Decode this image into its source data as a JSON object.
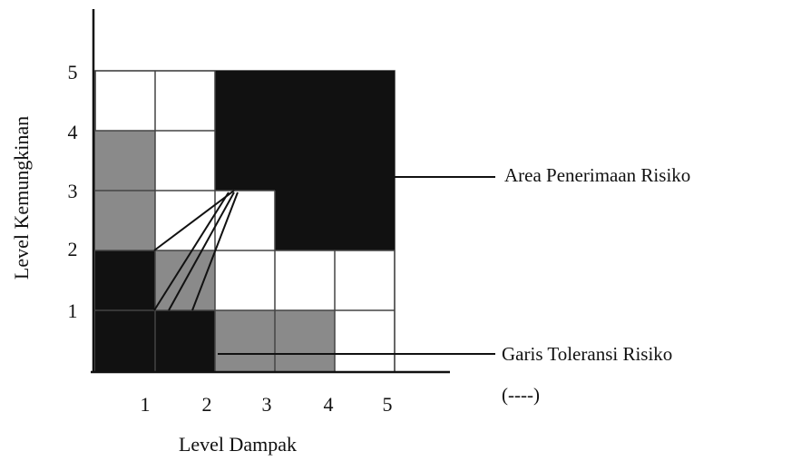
{
  "axes": {
    "y_label": "Level Kemungkinan",
    "x_label": "Level Dampak",
    "y_ticks": [
      "1",
      "2",
      "3",
      "4",
      "5"
    ],
    "x_ticks": [
      "1",
      "2",
      "3",
      "4",
      "5"
    ]
  },
  "annotations": {
    "acceptance_area": "Area Penerimaan Risiko",
    "tolerance_line": "Garis Toleransi Risiko",
    "tolerance_legend": "(----)"
  }
}
